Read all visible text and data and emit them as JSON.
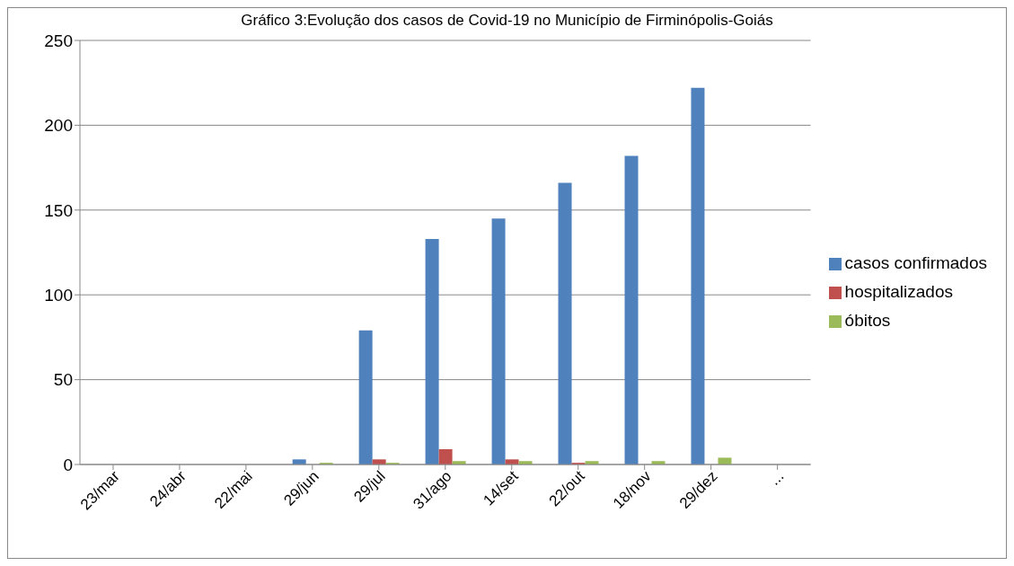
{
  "chart_data": {
    "type": "bar",
    "title": "Gráfico 3:Evolução dos casos de Covid-19 no Município de Firminópolis-Goiás",
    "categories": [
      "23/mar",
      "24/abr",
      "22/mai",
      "29/jun",
      "29/jul",
      "31/ago",
      "14/set",
      "22/out",
      "18/nov",
      "29/dez",
      "..."
    ],
    "series": [
      {
        "name": "casos confirmados",
        "color": "#4f81bd",
        "values": [
          0,
          0,
          0,
          3,
          79,
          133,
          145,
          166,
          182,
          222,
          0
        ]
      },
      {
        "name": "hospitalizados",
        "color": "#c0504d",
        "values": [
          0,
          0,
          0,
          0,
          3,
          9,
          3,
          1,
          0,
          0,
          0
        ]
      },
      {
        "name": "óbitos",
        "color": "#9bbb59",
        "values": [
          0,
          0,
          0,
          1,
          1,
          2,
          2,
          2,
          2,
          4,
          0
        ]
      }
    ],
    "ylim": [
      0,
      250
    ],
    "yticks": [
      0,
      50,
      100,
      150,
      200,
      250
    ],
    "grid": "y",
    "legend": "right"
  }
}
